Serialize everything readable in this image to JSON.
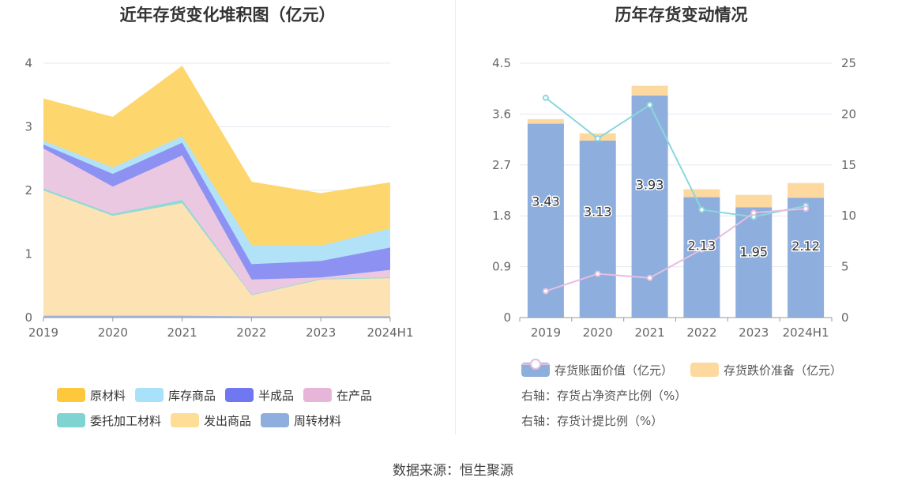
{
  "colors": {
    "原材料": "#fdd66e",
    "库存商品": "#b2e2f8",
    "半成品": "#8d92f2",
    "在产品": "#ebc8e1",
    "委托加工材料": "#8fdad6",
    "发出商品": "#fde3b4",
    "周转材料": "#9fb5e0",
    "bar_book": "#8eaedd",
    "bar_reserve": "#fdd9a0",
    "line_net": "#8ad7dc",
    "line_ratio": "#e4bfdf",
    "legend_原材料": "#fec83c",
    "legend_库存商品": "#a9e0fa",
    "legend_半成品": "#6f78f0",
    "legend_在产品": "#e6b5d8",
    "legend_委托加工材料": "#7fd4d2",
    "legend_发出商品": "#fedd96",
    "legend_周转材料": "#8eaedd"
  },
  "source_text": "数据来源：恒生聚源",
  "chart_data": [
    {
      "type": "area",
      "stacked": true,
      "title": "近年存货变化堆积图（亿元）",
      "categories": [
        "2019",
        "2020",
        "2021",
        "2022",
        "2023",
        "2024H1"
      ],
      "y_ticks": [
        "0",
        "1",
        "2",
        "3",
        "4"
      ],
      "ylim": [
        0,
        4
      ],
      "grid": true,
      "legend_position": "bottom",
      "series": [
        {
          "name": "周转材料",
          "values": [
            0.03,
            0.03,
            0.03,
            0.02,
            0.02,
            0.02
          ]
        },
        {
          "name": "发出商品",
          "values": [
            1.97,
            1.57,
            1.77,
            0.33,
            0.58,
            0.6
          ]
        },
        {
          "name": "委托加工材料",
          "values": [
            0.03,
            0.03,
            0.05,
            0.01,
            0.01,
            0.01
          ]
        },
        {
          "name": "在产品",
          "values": [
            0.63,
            0.43,
            0.7,
            0.24,
            0.02,
            0.12
          ]
        },
        {
          "name": "半成品",
          "values": [
            0.06,
            0.2,
            0.2,
            0.24,
            0.26,
            0.35
          ]
        },
        {
          "name": "库存商品",
          "values": [
            0.06,
            0.1,
            0.1,
            0.3,
            0.24,
            0.3
          ]
        },
        {
          "name": "原材料",
          "values": [
            0.66,
            0.79,
            1.1,
            0.99,
            0.82,
            0.72
          ]
        }
      ],
      "legend_rows": [
        [
          "原材料",
          "库存商品",
          "半成品",
          "在产品"
        ],
        [
          "委托加工材料",
          "发出商品",
          "周转材料"
        ]
      ]
    },
    {
      "type": "bar",
      "title": "历年存货变动情况",
      "categories": [
        "2019",
        "2020",
        "2021",
        "2022",
        "2023",
        "2024H1"
      ],
      "y_left_ticks": [
        "0",
        "0.9",
        "1.8",
        "2.7",
        "3.6",
        "4.5"
      ],
      "y_left_lim": [
        0,
        4.5
      ],
      "y_right_ticks": [
        "0",
        "5",
        "10",
        "15",
        "20",
        "25"
      ],
      "y_right_lim": [
        0,
        25
      ],
      "grid": true,
      "legend_position": "bottom",
      "series": [
        {
          "name": "存货账面价值（亿元）",
          "type": "bar",
          "stack": "inv",
          "values": [
            3.43,
            3.13,
            3.93,
            2.13,
            1.95,
            2.12
          ],
          "labels": [
            "3.43",
            "3.13",
            "3.93",
            "2.13",
            "1.95",
            "2.12"
          ]
        },
        {
          "name": "存货跌价准备（亿元）",
          "type": "bar",
          "stack": "inv",
          "values": [
            0.08,
            0.13,
            0.17,
            0.14,
            0.22,
            0.26
          ]
        },
        {
          "name": "右轴：存货占净资产比例（%）",
          "type": "line",
          "axis": "right",
          "values": [
            21.6,
            17.6,
            20.9,
            10.6,
            9.9,
            11.0
          ]
        },
        {
          "name": "右轴：存货计提比例（%）",
          "type": "line",
          "axis": "right",
          "values": [
            2.6,
            4.3,
            3.9,
            6.7,
            10.3,
            10.7
          ]
        }
      ]
    }
  ]
}
